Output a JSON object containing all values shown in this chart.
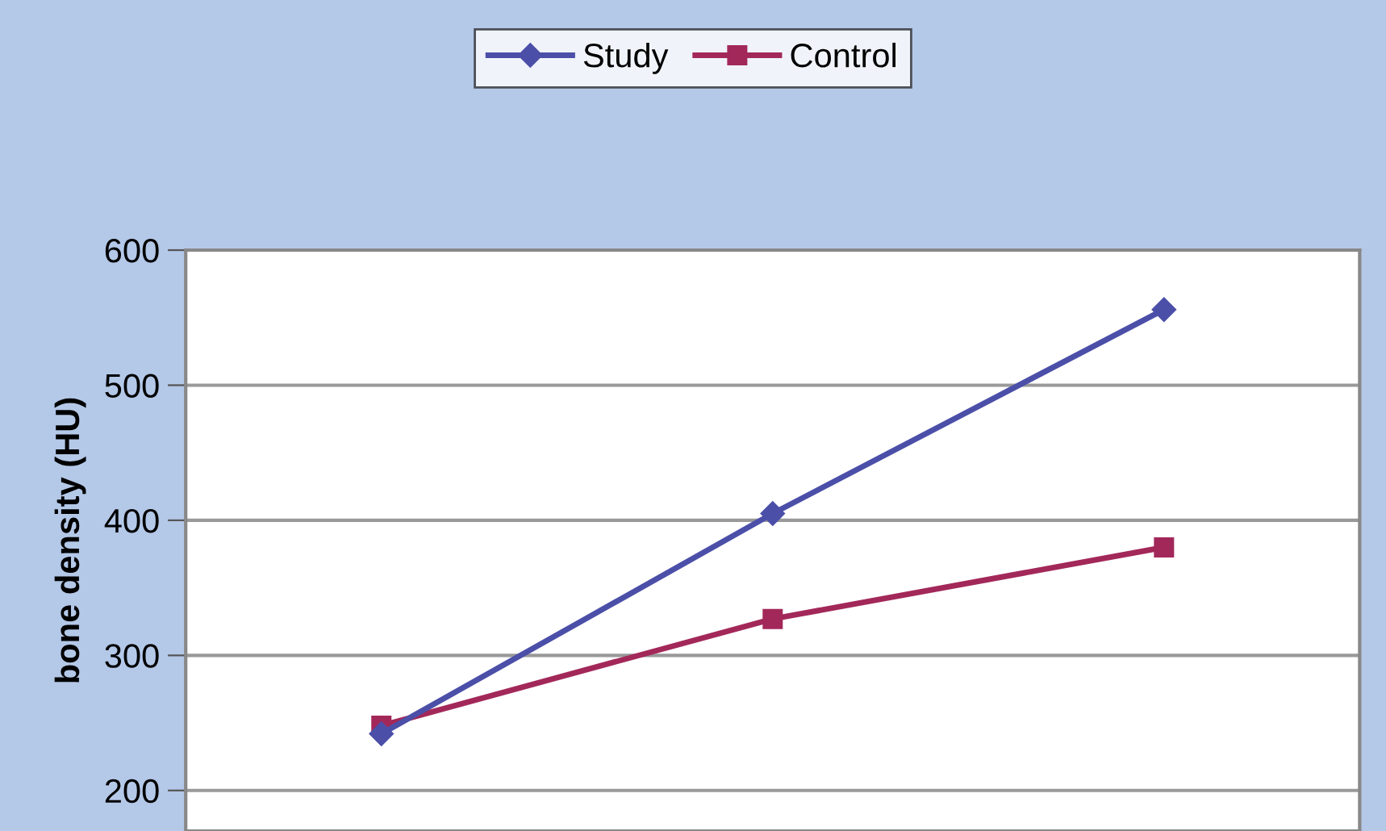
{
  "chart_data": {
    "type": "line",
    "ylabel": "bone density (HU)",
    "categories": [
      null,
      null,
      null
    ],
    "series": [
      {
        "name": "Study",
        "color": "#4b4fa8",
        "values": [
          242,
          405,
          556
        ],
        "marker": "diamond"
      },
      {
        "name": "Control",
        "color": "#a3285a",
        "values": [
          248,
          327,
          380
        ],
        "marker": "square"
      }
    ],
    "ylim": [
      170,
      600
    ],
    "yticks": [
      200,
      300,
      400,
      500,
      600
    ],
    "grid": "y",
    "legend": "top",
    "tick_labels": "y"
  }
}
